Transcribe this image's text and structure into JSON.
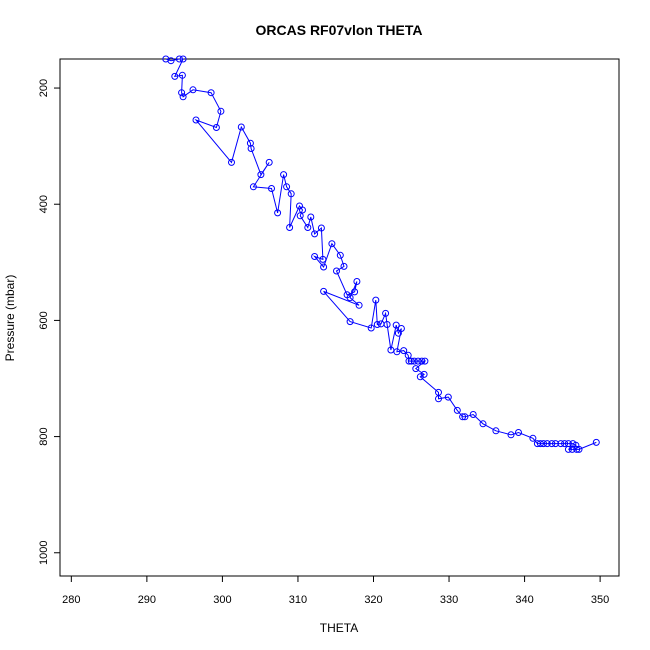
{
  "chart_data": {
    "type": "line",
    "title": "ORCAS RF07vlon THETA",
    "xlabel": "THETA",
    "ylabel": "Pressure (mbar)",
    "xlim": [
      278.5,
      352.5
    ],
    "ylim": [
      1040,
      150
    ],
    "y_reversed": true,
    "grid": false,
    "x_ticks": [
      "280",
      "290",
      "300",
      "310",
      "320",
      "330",
      "340",
      "350"
    ],
    "y_ticks": [
      "200",
      "400",
      "600",
      "800",
      "1000"
    ],
    "style": {
      "color": "#0000ff",
      "marker": "open-circle",
      "line": true
    },
    "series": [
      {
        "values": [
          [
            292.5,
            150
          ],
          [
            293.2,
            153
          ],
          [
            294.3,
            150
          ],
          [
            294.8,
            150
          ],
          [
            293.7,
            180
          ],
          [
            294.7,
            178
          ],
          [
            294.6,
            208
          ],
          [
            294.8,
            215
          ],
          [
            296.1,
            203
          ],
          [
            298.5,
            208
          ],
          [
            299.8,
            240
          ],
          [
            299.2,
            268
          ],
          [
            296.5,
            255
          ],
          [
            301.2,
            328
          ],
          [
            302.5,
            267
          ],
          [
            303.7,
            295
          ],
          [
            303.8,
            304
          ],
          [
            305.1,
            349
          ],
          [
            306.2,
            328
          ],
          [
            304.1,
            370
          ],
          [
            306.5,
            373
          ],
          [
            307.3,
            415
          ],
          [
            308.1,
            349
          ],
          [
            308.5,
            370
          ],
          [
            309.1,
            382
          ],
          [
            308.9,
            440
          ],
          [
            310.2,
            403
          ],
          [
            310.6,
            410
          ],
          [
            310.3,
            420
          ],
          [
            311.3,
            440
          ],
          [
            311.7,
            422
          ],
          [
            312.2,
            451
          ],
          [
            313.1,
            441
          ],
          [
            313.3,
            495
          ],
          [
            312.2,
            490
          ],
          [
            313.4,
            508
          ],
          [
            314.5,
            468
          ],
          [
            315.6,
            488
          ],
          [
            316.1,
            507
          ],
          [
            315.1,
            515
          ],
          [
            316.5,
            556
          ],
          [
            317.5,
            551
          ],
          [
            317.8,
            533
          ],
          [
            316.9,
            561
          ],
          [
            318.1,
            574
          ],
          [
            313.4,
            550
          ],
          [
            316.9,
            602
          ],
          [
            319.7,
            613
          ],
          [
            320.3,
            565
          ],
          [
            320.5,
            607
          ],
          [
            321.0,
            606
          ],
          [
            321.6,
            588
          ],
          [
            321.8,
            607
          ],
          [
            322.3,
            651
          ],
          [
            323.0,
            608
          ],
          [
            323.3,
            622
          ],
          [
            323.7,
            614
          ],
          [
            323.1,
            654
          ],
          [
            324.0,
            652
          ],
          [
            324.6,
            660
          ],
          [
            324.7,
            670
          ],
          [
            325.0,
            670
          ],
          [
            325.4,
            670
          ],
          [
            325.9,
            670
          ],
          [
            326.4,
            670
          ],
          [
            326.8,
            670
          ],
          [
            325.6,
            683
          ],
          [
            326.7,
            693
          ],
          [
            326.2,
            697
          ],
          [
            328.6,
            724
          ],
          [
            328.6,
            735
          ],
          [
            329.9,
            732
          ],
          [
            331.1,
            755
          ],
          [
            331.8,
            766
          ],
          [
            332.1,
            766
          ],
          [
            333.2,
            762
          ],
          [
            334.5,
            778
          ],
          [
            336.2,
            790
          ],
          [
            338.2,
            797
          ],
          [
            339.2,
            793
          ],
          [
            341.1,
            803
          ],
          [
            341.7,
            812
          ],
          [
            342.1,
            812
          ],
          [
            342.5,
            812
          ],
          [
            343.0,
            812
          ],
          [
            343.6,
            812
          ],
          [
            344.1,
            812
          ],
          [
            344.8,
            812
          ],
          [
            345.3,
            812
          ],
          [
            345.8,
            812
          ],
          [
            346.4,
            812
          ],
          [
            346.8,
            815
          ],
          [
            345.8,
            822
          ],
          [
            346.3,
            822
          ],
          [
            346.9,
            822
          ],
          [
            347.2,
            822
          ],
          [
            349.5,
            810
          ]
        ]
      }
    ]
  }
}
